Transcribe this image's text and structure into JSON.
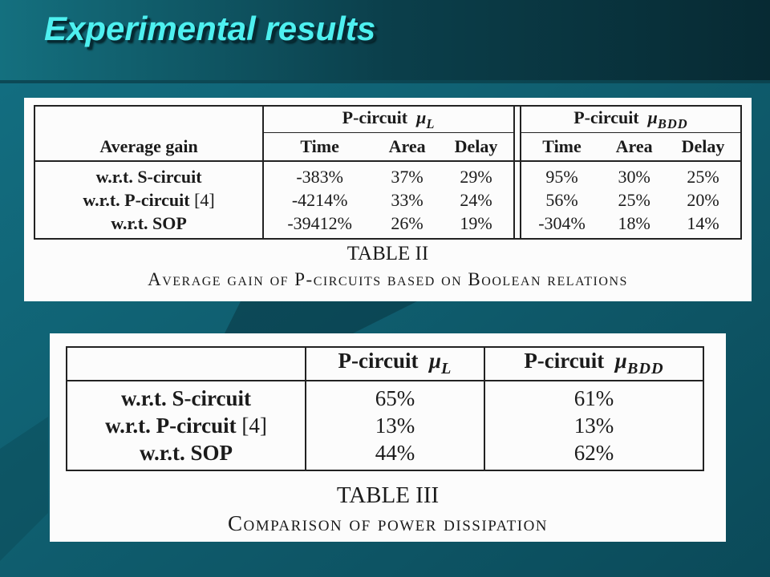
{
  "slide": {
    "title": "Experimental results"
  },
  "table2": {
    "groups": [
      {
        "label": "P-circuit",
        "mu": "μ",
        "sub": "L"
      },
      {
        "label": "P-circuit",
        "mu": "μ",
        "sub": "BDD"
      }
    ],
    "header_row_label": "Average gain",
    "subheaders": [
      "Time",
      "Area",
      "Delay",
      "Time",
      "Area",
      "Delay"
    ],
    "rows": [
      {
        "label": "w.r.t. S-circuit",
        "ref": "",
        "values": [
          "-383%",
          "37%",
          "29%",
          "95%",
          "30%",
          "25%"
        ]
      },
      {
        "label": "w.r.t. P-circuit",
        "ref": "[4]",
        "values": [
          "-4214%",
          "33%",
          "24%",
          "56%",
          "25%",
          "20%"
        ]
      },
      {
        "label": "w.r.t. SOP",
        "ref": "",
        "values": [
          "-39412%",
          "26%",
          "19%",
          "-304%",
          "18%",
          "14%"
        ]
      }
    ],
    "caption_title": "TABLE II",
    "caption_text": "Average gain of P-circuits based on Boolean relations"
  },
  "table3": {
    "columns": [
      {
        "label": "P-circuit",
        "mu": "μ",
        "sub": "L"
      },
      {
        "label": "P-circuit",
        "mu": "μ",
        "sub": "BDD"
      }
    ],
    "rows": [
      {
        "label": "w.r.t. S-circuit",
        "ref": "",
        "values": [
          "65%",
          "61%"
        ]
      },
      {
        "label": "w.r.t. P-circuit",
        "ref": "[4]",
        "values": [
          "13%",
          "13%"
        ]
      },
      {
        "label": "w.r.t. SOP",
        "ref": "",
        "values": [
          "44%",
          "62%"
        ]
      }
    ],
    "caption_title": "TABLE III",
    "caption_text": "Comparison of power dissipation"
  },
  "colors": {
    "title": "#4ef0f0",
    "background": "#0f5a6c",
    "panel": "#fcfcfc"
  }
}
